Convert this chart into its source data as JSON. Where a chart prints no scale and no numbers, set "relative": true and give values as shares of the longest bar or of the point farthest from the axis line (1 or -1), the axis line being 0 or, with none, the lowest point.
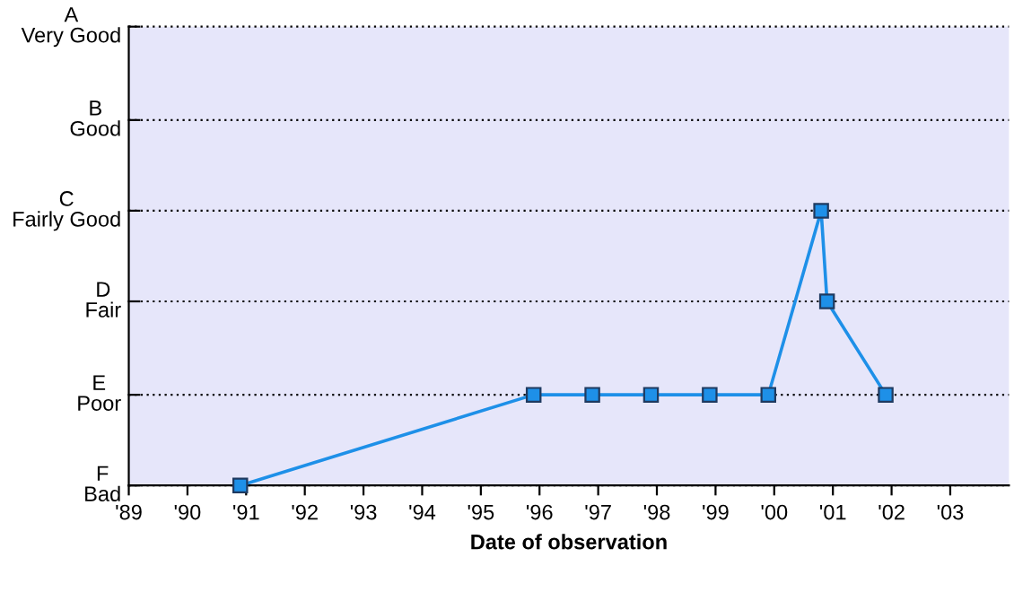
{
  "chart_data": {
    "type": "line",
    "xlabel": "Date of observation",
    "relative": true,
    "x": [
      1990.9,
      1995.9,
      1996.9,
      1997.9,
      1998.9,
      1999.9,
      2000.8,
      2000.9,
      2001.9
    ],
    "series": [
      {
        "color": "#1e90e8",
        "values": [
          0,
          0.33,
          0.33,
          0.33,
          0.33,
          0.33,
          1,
          0.67,
          0.33
        ]
      }
    ],
    "xlim": [
      1989,
      2004
    ],
    "xticks": [
      {
        "value": 1989,
        "label": "'89"
      },
      {
        "value": 1990,
        "label": "'90"
      },
      {
        "value": 1991,
        "label": "'91"
      },
      {
        "value": 1992,
        "label": "'92"
      },
      {
        "value": 1993,
        "label": "'93"
      },
      {
        "value": 1994,
        "label": "'94"
      },
      {
        "value": 1995,
        "label": "'95"
      },
      {
        "value": 1996,
        "label": "'96"
      },
      {
        "value": 1997,
        "label": "'97"
      },
      {
        "value": 1998,
        "label": "'98"
      },
      {
        "value": 1999,
        "label": "'99"
      },
      {
        "value": 2000,
        "label": "'00"
      },
      {
        "value": 2001,
        "label": "'01"
      },
      {
        "value": 2002,
        "label": "'02"
      },
      {
        "value": 2003,
        "label": "'03"
      }
    ],
    "ref_lines": [
      {
        "axis": "y",
        "value": 1.67,
        "label": "A\nVery Good",
        "color": "#000000",
        "line_style": "dotted"
      },
      {
        "axis": "y",
        "value": 1.33,
        "label": "B\nGood",
        "color": "#000000",
        "line_style": "dotted"
      },
      {
        "axis": "y",
        "value": 1,
        "label": "C\nFairly Good",
        "color": "#000000",
        "line_style": "dotted"
      },
      {
        "axis": "y",
        "value": 0.67,
        "label": "D\nFair",
        "color": "#000000",
        "line_style": "dotted"
      },
      {
        "axis": "y",
        "value": 0.33,
        "label": "E\nPoor",
        "color": "#000000",
        "line_style": "dotted"
      },
      {
        "axis": "y",
        "value": 0,
        "label": "F\nBad",
        "color": "#000000",
        "line_style": "dotted"
      }
    ],
    "marker": "square",
    "line_style": "solid"
  }
}
